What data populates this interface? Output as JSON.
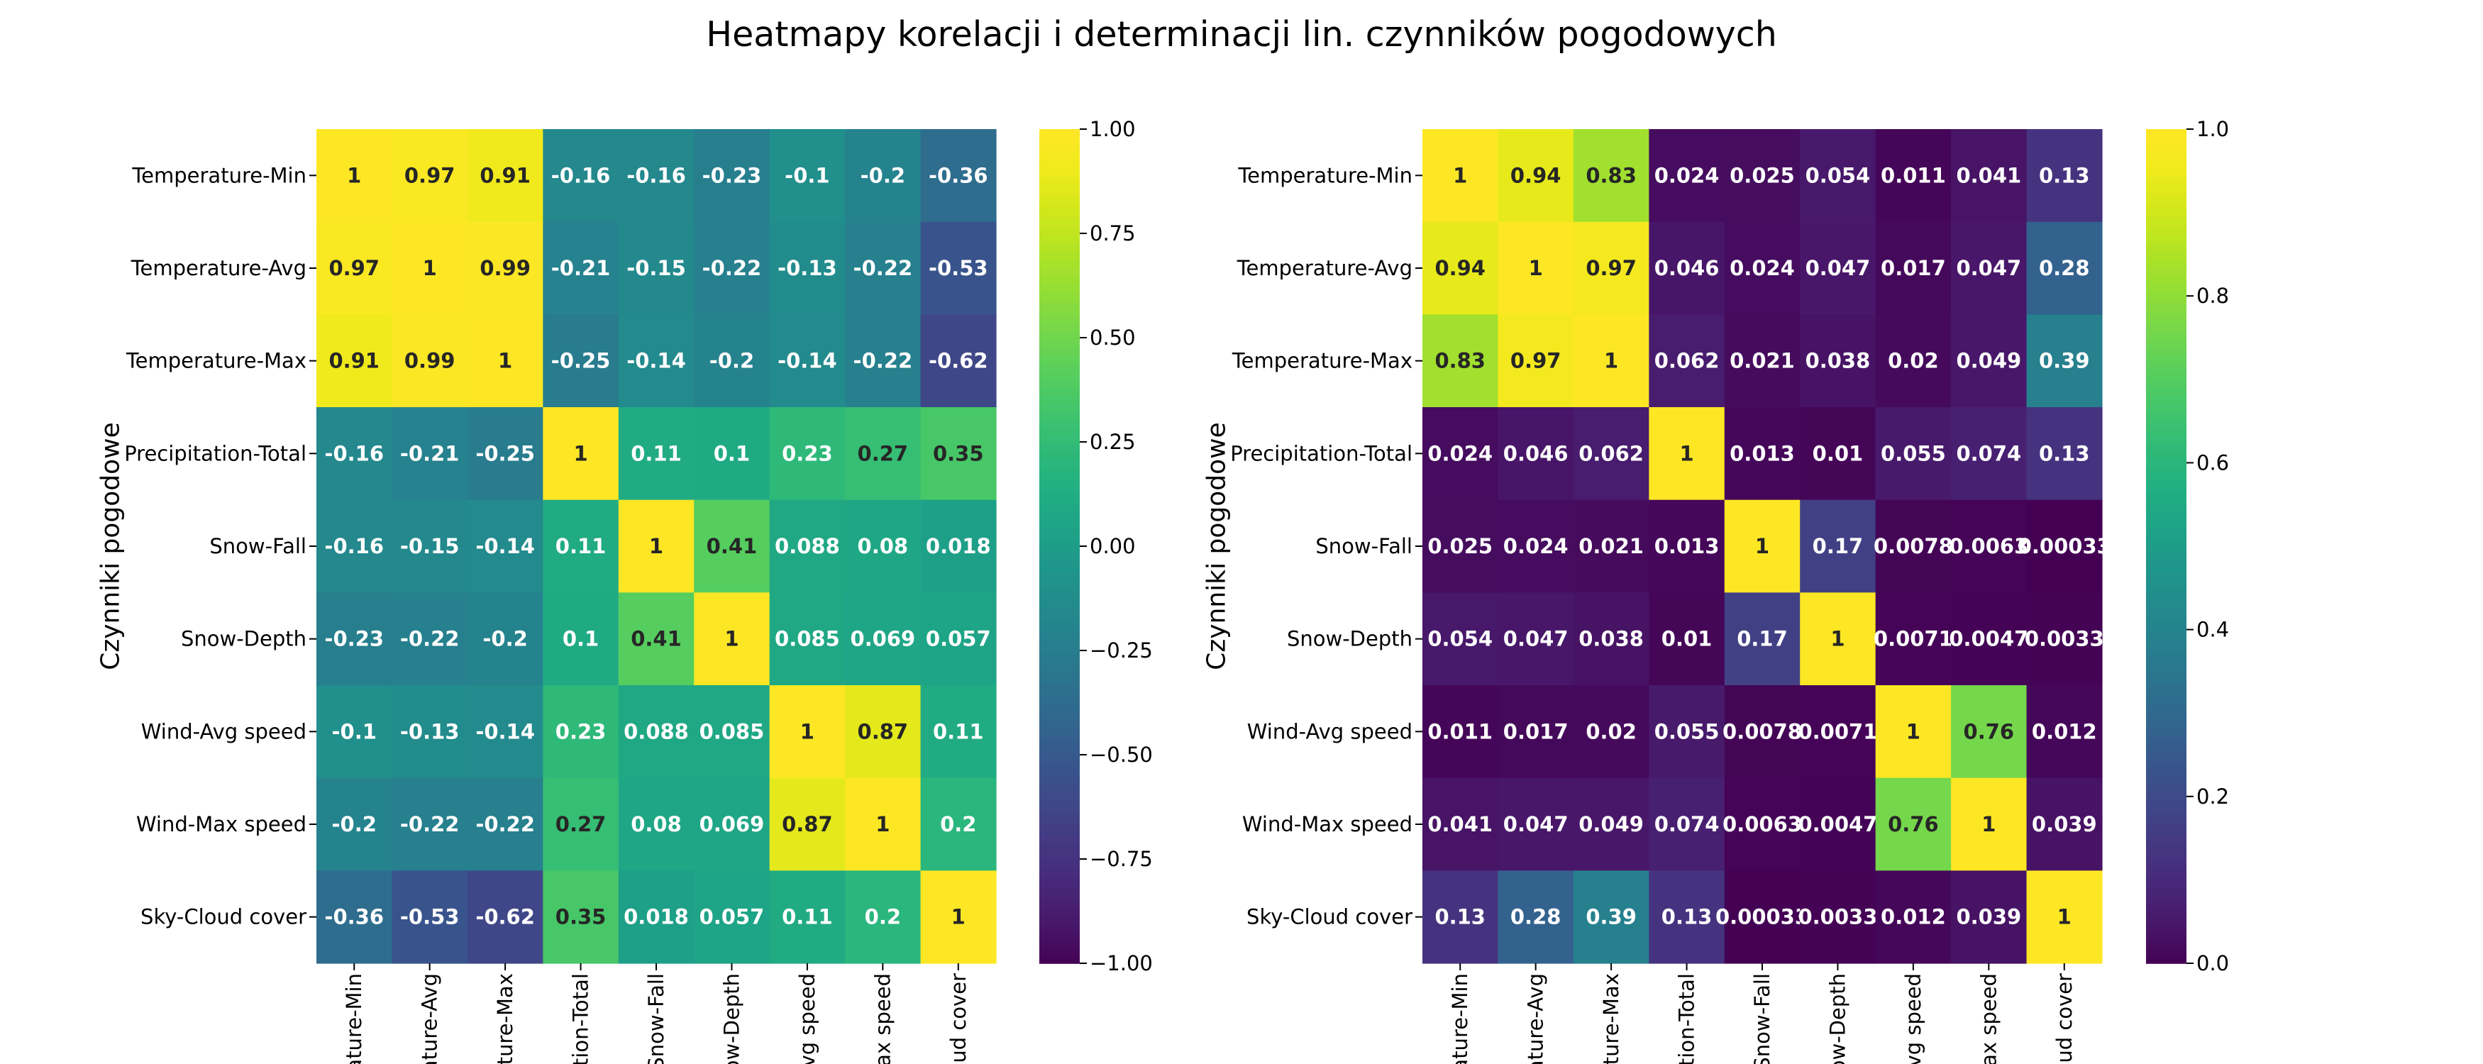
{
  "title": "Heatmapy korelacji i determinacji lin. czynników pogodowych",
  "chart_data": [
    {
      "type": "heatmap",
      "ylabel": "Czynniki pogodowe",
      "xlabel": "",
      "rows": [
        "Temperature-Min",
        "Temperature-Avg",
        "Temperature-Max",
        "Precipitation-Total",
        "Snow-Fall",
        "Snow-Depth",
        "Wind-Avg speed",
        "Wind-Max speed",
        "Sky-Cloud cover"
      ],
      "columns": [
        "Temperature-Min",
        "Temperature-Avg",
        "Temperature-Max",
        "Precipitation-Total",
        "Snow-Fall",
        "Snow-Depth",
        "Wind-Avg speed",
        "Wind-Max speed",
        "Sky-Cloud cover"
      ],
      "column_tick_labels": [
        "erature-Min",
        "erature-Avg",
        "rature-Max",
        "itation-Total",
        "Snow-Fall",
        "now-Depth",
        "-Avg speed",
        "Max speed",
        "loud cover"
      ],
      "values": [
        [
          1,
          0.97,
          0.91,
          -0.16,
          -0.16,
          -0.23,
          -0.1,
          -0.2,
          -0.36
        ],
        [
          0.97,
          1,
          0.99,
          -0.21,
          -0.15,
          -0.22,
          -0.13,
          -0.22,
          -0.53
        ],
        [
          0.91,
          0.99,
          1,
          -0.25,
          -0.14,
          -0.2,
          -0.14,
          -0.22,
          -0.62
        ],
        [
          -0.16,
          -0.21,
          -0.25,
          1,
          0.11,
          0.1,
          0.23,
          0.27,
          0.35
        ],
        [
          -0.16,
          -0.15,
          -0.14,
          0.11,
          1,
          0.41,
          0.088,
          0.08,
          0.018
        ],
        [
          -0.23,
          -0.22,
          -0.2,
          0.1,
          0.41,
          1,
          0.085,
          0.069,
          0.057
        ],
        [
          -0.1,
          -0.13,
          -0.14,
          0.23,
          0.088,
          0.085,
          1,
          0.87,
          0.11
        ],
        [
          -0.2,
          -0.22,
          -0.22,
          0.27,
          0.08,
          0.069,
          0.87,
          1,
          0.2
        ],
        [
          -0.36,
          -0.53,
          -0.62,
          0.35,
          0.018,
          0.057,
          0.11,
          0.2,
          1
        ]
      ],
      "colormap": "viridis",
      "vmin": -1,
      "vmax": 1,
      "colorbar_ticks": [
        "1.00",
        "0.75",
        "0.50",
        "0.25",
        "0.00",
        "−0.25",
        "−0.50",
        "−0.75",
        "−1.00"
      ],
      "colorbar_tick_values": [
        1,
        0.75,
        0.5,
        0.25,
        0,
        -0.25,
        -0.5,
        -0.75,
        -1
      ]
    },
    {
      "type": "heatmap",
      "ylabel": "Czynniki pogodowe",
      "xlabel": "",
      "rows": [
        "Temperature-Min",
        "Temperature-Avg",
        "Temperature-Max",
        "Precipitation-Total",
        "Snow-Fall",
        "Snow-Depth",
        "Wind-Avg speed",
        "Wind-Max speed",
        "Sky-Cloud cover"
      ],
      "columns": [
        "Temperature-Min",
        "Temperature-Avg",
        "Temperature-Max",
        "Precipitation-Total",
        "Snow-Fall",
        "Snow-Depth",
        "Wind-Avg speed",
        "Wind-Max speed",
        "Sky-Cloud cover"
      ],
      "column_tick_labels": [
        "erature-Min",
        "erature-Avg",
        "rature-Max",
        "itation-Total",
        "Snow-Fall",
        "now-Depth",
        "-Avg speed",
        "Max speed",
        "loud cover"
      ],
      "values": [
        [
          1,
          0.94,
          0.83,
          0.024,
          0.025,
          0.054,
          0.011,
          0.041,
          0.13
        ],
        [
          0.94,
          1,
          0.97,
          0.046,
          0.024,
          0.047,
          0.017,
          0.047,
          0.28
        ],
        [
          0.83,
          0.97,
          1,
          0.062,
          0.021,
          0.038,
          0.02,
          0.049,
          0.39
        ],
        [
          0.024,
          0.046,
          0.062,
          1,
          0.013,
          0.01,
          0.055,
          0.074,
          0.13
        ],
        [
          0.025,
          0.024,
          0.021,
          0.013,
          1,
          0.17,
          0.0078,
          0.0063,
          0.00033
        ],
        [
          0.054,
          0.047,
          0.038,
          0.01,
          0.17,
          1,
          0.0071,
          0.0047,
          0.0033
        ],
        [
          0.011,
          0.017,
          0.02,
          0.055,
          0.0078,
          0.0071,
          1,
          0.76,
          0.012
        ],
        [
          0.041,
          0.047,
          0.049,
          0.074,
          0.0063,
          0.0047,
          0.76,
          1,
          0.039
        ],
        [
          0.13,
          0.28,
          0.39,
          0.13,
          0.00033,
          0.0033,
          0.012,
          0.039,
          1
        ]
      ],
      "colormap": "viridis",
      "vmin": 0,
      "vmax": 1,
      "colorbar_ticks": [
        "1.0",
        "0.8",
        "0.6",
        "0.4",
        "0.2",
        "0.0"
      ],
      "colorbar_tick_values": [
        1,
        0.8,
        0.6,
        0.4,
        0.2,
        0
      ]
    }
  ]
}
